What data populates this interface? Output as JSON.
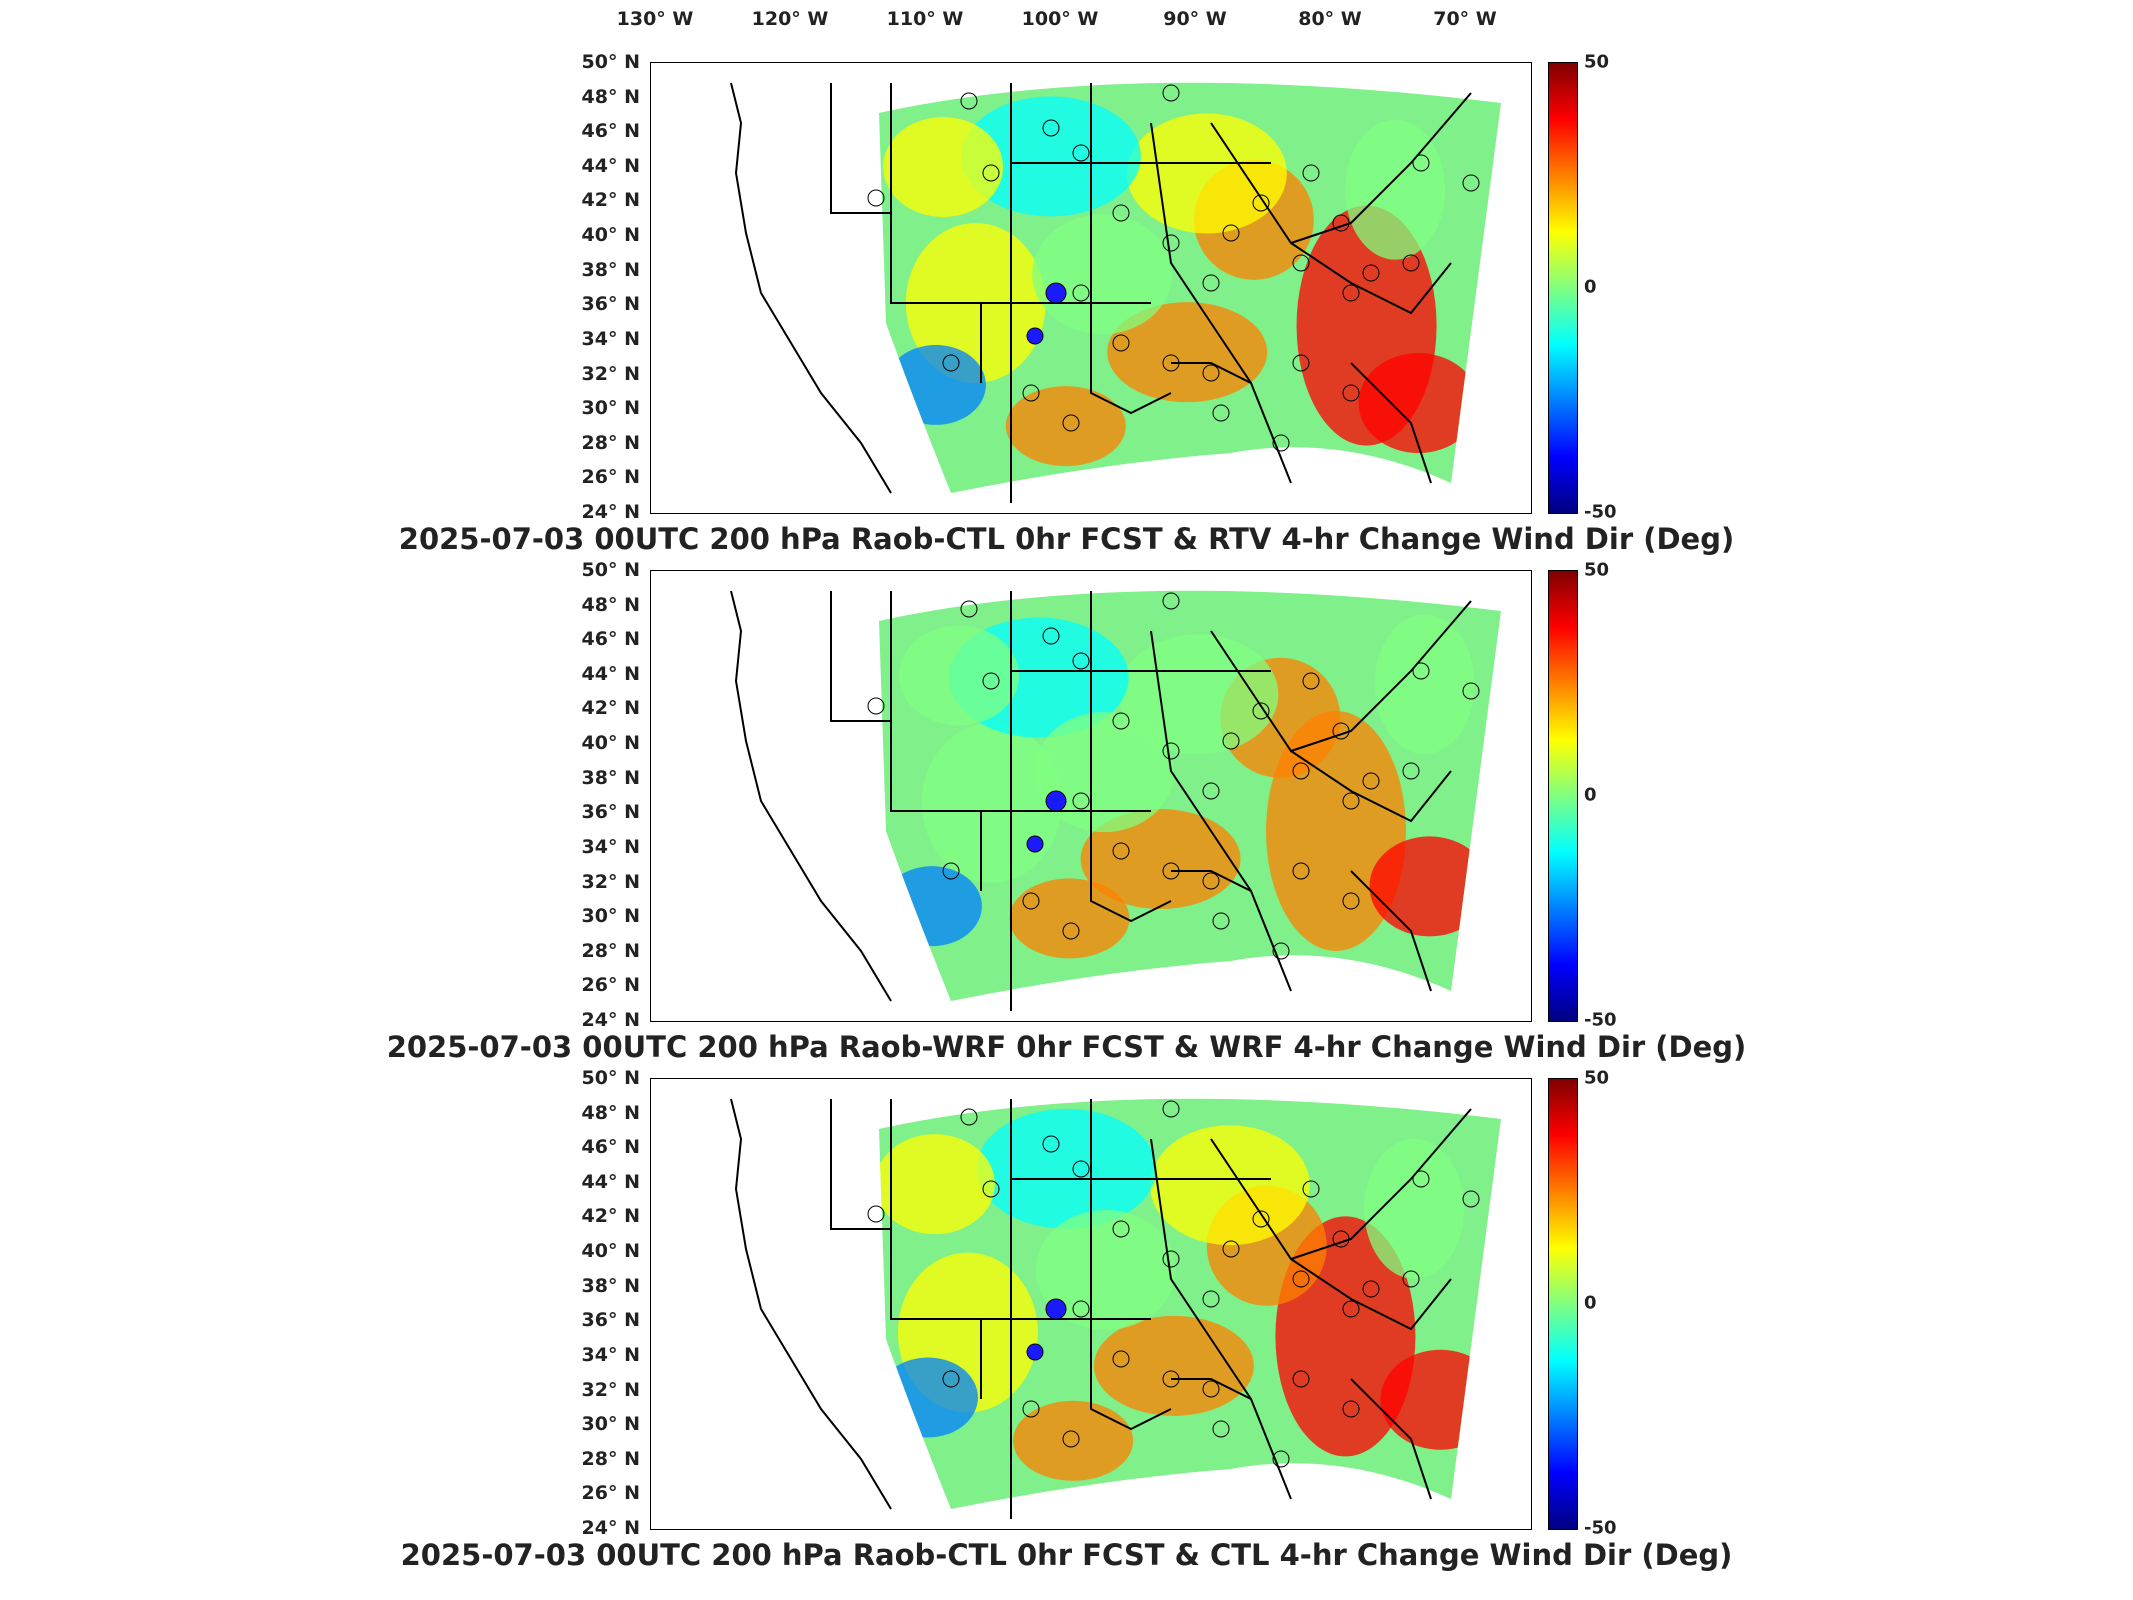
{
  "lon_labels": [
    "130° W",
    "120° W",
    "110° W",
    "100° W",
    "90° W",
    "80° W",
    "70° W"
  ],
  "lat_labels": [
    "50° N",
    "48° N",
    "46° N",
    "44° N",
    "42° N",
    "40° N",
    "38° N",
    "36° N",
    "34° N",
    "32° N",
    "30° N",
    "28° N",
    "26° N",
    "24° N"
  ],
  "colorbar": {
    "max": "50",
    "mid": "0",
    "min": "-50",
    "colors": [
      "#800000",
      "#ff0000",
      "#ff8000",
      "#ffff00",
      "#80ff80",
      "#00ffff",
      "#0080ff",
      "#0000ff",
      "#000080"
    ]
  },
  "chart_data": [
    {
      "type": "heatmap",
      "title": "2025-07-03 00UTC 200 hPa Raob-CTL 0hr FCST & RTV 4-hr Change Wind Dir (Deg)",
      "xlim": [
        -130,
        -65
      ],
      "ylim": [
        24,
        50
      ],
      "clim": [
        -50,
        50
      ]
    },
    {
      "type": "heatmap",
      "title": "2025-07-03 00UTC 200 hPa Raob-WRF 0hr FCST & WRF 4-hr Change Wind Dir (Deg)",
      "xlim": [
        -130,
        -65
      ],
      "ylim": [
        24,
        50
      ],
      "clim": [
        -50,
        50
      ]
    },
    {
      "type": "heatmap",
      "title": "2025-07-03 00UTC 200 hPa Raob-CTL 0hr FCST & CTL 4-hr Change Wind Dir (Deg)",
      "xlim": [
        -130,
        -65
      ],
      "ylim": [
        24,
        50
      ],
      "clim": [
        -50,
        50
      ]
    }
  ]
}
